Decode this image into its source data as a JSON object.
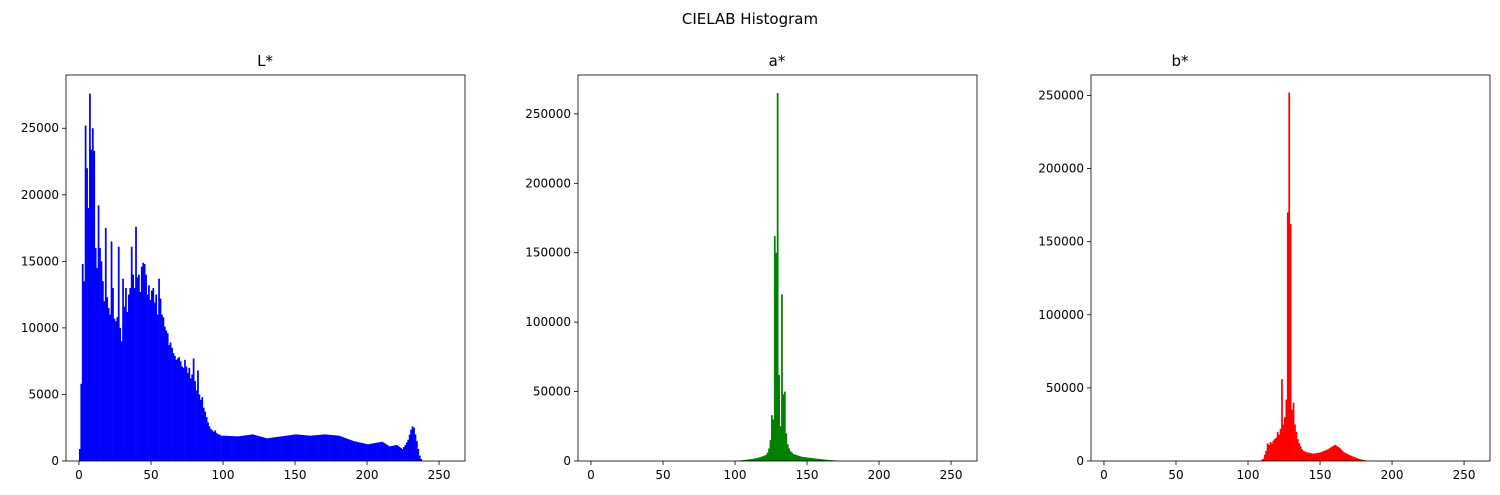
{
  "figure": {
    "suptitle": "CIELAB Histogram"
  },
  "chart_data": [
    {
      "type": "histogram",
      "title": "L*",
      "color": "#0000ff",
      "xlim": [
        -9,
        268
      ],
      "ylim": [
        0,
        29000
      ],
      "xticks": [
        0,
        50,
        100,
        150,
        200,
        250
      ],
      "yticks": [
        0,
        5000,
        10000,
        15000,
        20000,
        25000
      ],
      "ytick_labels": [
        "0",
        "5000",
        "10000",
        "15000",
        "20000",
        "25000"
      ],
      "profile": [
        [
          0,
          900
        ],
        [
          1,
          5800
        ],
        [
          2,
          14800
        ],
        [
          3,
          13500
        ],
        [
          4,
          25200
        ],
        [
          5,
          22000
        ],
        [
          6,
          19000
        ],
        [
          7,
          27600
        ],
        [
          8,
          23400
        ],
        [
          9,
          25000
        ],
        [
          10,
          23300
        ],
        [
          11,
          16000
        ],
        [
          12,
          14500
        ],
        [
          13,
          19200
        ],
        [
          14,
          16000
        ],
        [
          15,
          15000
        ],
        [
          16,
          13500
        ],
        [
          17,
          12000
        ],
        [
          18,
          17500
        ],
        [
          19,
          12300
        ],
        [
          20,
          11500
        ],
        [
          21,
          11000
        ],
        [
          22,
          16500
        ],
        [
          23,
          13000
        ],
        [
          24,
          10700
        ],
        [
          25,
          10500
        ],
        [
          26,
          10800
        ],
        [
          27,
          16100
        ],
        [
          28,
          10000
        ],
        [
          29,
          9000
        ],
        [
          30,
          13700
        ],
        [
          31,
          11600
        ],
        [
          32,
          13000
        ],
        [
          33,
          11200
        ],
        [
          34,
          12500
        ],
        [
          35,
          13000
        ],
        [
          36,
          16100
        ],
        [
          37,
          14000
        ],
        [
          38,
          13000
        ],
        [
          39,
          17600
        ],
        [
          40,
          13800
        ],
        [
          41,
          14000
        ],
        [
          42,
          12700
        ],
        [
          43,
          14600
        ],
        [
          44,
          14900
        ],
        [
          45,
          14800
        ],
        [
          46,
          14000
        ],
        [
          47,
          12500
        ],
        [
          48,
          13200
        ],
        [
          49,
          12100
        ],
        [
          50,
          12800
        ],
        [
          51,
          13000
        ],
        [
          52,
          11900
        ],
        [
          53,
          12500
        ],
        [
          54,
          11000
        ],
        [
          55,
          13700
        ],
        [
          56,
          12200
        ],
        [
          57,
          11000
        ],
        [
          58,
          10800
        ],
        [
          59,
          10100
        ],
        [
          60,
          9800
        ],
        [
          61,
          9600
        ],
        [
          62,
          8700
        ],
        [
          63,
          8900
        ],
        [
          64,
          8500
        ],
        [
          65,
          8100
        ],
        [
          66,
          7900
        ],
        [
          67,
          7600
        ],
        [
          68,
          7700
        ],
        [
          69,
          7800
        ],
        [
          70,
          7500
        ],
        [
          71,
          7100
        ],
        [
          72,
          7000
        ],
        [
          73,
          7600
        ],
        [
          74,
          7100
        ],
        [
          75,
          6600
        ],
        [
          76,
          7000
        ],
        [
          77,
          6200
        ],
        [
          78,
          6500
        ],
        [
          79,
          7700
        ],
        [
          80,
          6000
        ],
        [
          81,
          5300
        ],
        [
          82,
          6800
        ],
        [
          83,
          5000
        ],
        [
          84,
          4600
        ],
        [
          85,
          4800
        ],
        [
          86,
          4000
        ],
        [
          87,
          3700
        ],
        [
          88,
          3300
        ],
        [
          89,
          2900
        ],
        [
          90,
          2600
        ],
        [
          91,
          2400
        ],
        [
          92,
          2300
        ],
        [
          93,
          2200
        ],
        [
          94,
          2300
        ],
        [
          95,
          2100
        ],
        [
          96,
          2000
        ],
        [
          97,
          2000
        ],
        [
          98,
          1900
        ],
        [
          100,
          1900
        ],
        [
          110,
          1850
        ],
        [
          120,
          2000
        ],
        [
          130,
          1700
        ],
        [
          140,
          1850
        ],
        [
          150,
          2000
        ],
        [
          160,
          1900
        ],
        [
          170,
          2000
        ],
        [
          180,
          1900
        ],
        [
          190,
          1500
        ],
        [
          200,
          1250
        ],
        [
          210,
          1450
        ],
        [
          215,
          1100
        ],
        [
          220,
          1200
        ],
        [
          224,
          900
        ],
        [
          226,
          1200
        ],
        [
          228,
          1600
        ],
        [
          230,
          2350
        ],
        [
          231,
          2600
        ],
        [
          232,
          2500
        ],
        [
          233,
          2000
        ],
        [
          234,
          1500
        ],
        [
          235,
          900
        ],
        [
          236,
          400
        ],
        [
          237,
          150
        ],
        [
          238,
          0
        ],
        [
          255,
          0
        ]
      ]
    },
    {
      "type": "histogram",
      "title": "a*",
      "color": "#008000",
      "xlim": [
        -9,
        268
      ],
      "ylim": [
        0,
        278000
      ],
      "xticks": [
        0,
        50,
        100,
        150,
        200,
        250
      ],
      "yticks": [
        0,
        50000,
        100000,
        150000,
        200000,
        250000
      ],
      "ytick_labels": [
        "0",
        "50000",
        "100000",
        "150000",
        "200000",
        "250000"
      ],
      "profile": [
        [
          0,
          0
        ],
        [
          100,
          0
        ],
        [
          104,
          500
        ],
        [
          108,
          1000
        ],
        [
          112,
          1500
        ],
        [
          116,
          2500
        ],
        [
          119,
          3500
        ],
        [
          121,
          4500
        ],
        [
          122,
          6000
        ],
        [
          123,
          9000
        ],
        [
          124,
          15000
        ],
        [
          125,
          33000
        ],
        [
          126,
          30000
        ],
        [
          127,
          162000
        ],
        [
          128,
          150000
        ],
        [
          129,
          265000
        ],
        [
          130,
          62000
        ],
        [
          131,
          25000
        ],
        [
          132,
          120000
        ],
        [
          133,
          48000
        ],
        [
          134,
          50000
        ],
        [
          135,
          20000
        ],
        [
          136,
          12000
        ],
        [
          137,
          9000
        ],
        [
          138,
          7000
        ],
        [
          140,
          5000
        ],
        [
          143,
          4000
        ],
        [
          146,
          3000
        ],
        [
          150,
          2500
        ],
        [
          155,
          1800
        ],
        [
          160,
          1200
        ],
        [
          165,
          700
        ],
        [
          170,
          300
        ],
        [
          175,
          0
        ],
        [
          255,
          0
        ]
      ]
    },
    {
      "type": "histogram",
      "title": "b*",
      "color": "#ff0000",
      "xlim": [
        -9,
        268
      ],
      "ylim": [
        0,
        264000
      ],
      "xticks": [
        0,
        50,
        100,
        150,
        200,
        250
      ],
      "yticks": [
        0,
        50000,
        100000,
        150000,
        200000,
        250000
      ],
      "ytick_labels": [
        "0",
        "50000",
        "100000",
        "150000",
        "200000",
        "250000"
      ],
      "profile": [
        [
          0,
          0
        ],
        [
          108,
          0
        ],
        [
          110,
          1500
        ],
        [
          112,
          7000
        ],
        [
          113,
          12000
        ],
        [
          114,
          11000
        ],
        [
          115,
          13000
        ],
        [
          116,
          12000
        ],
        [
          117,
          14000
        ],
        [
          118,
          15000
        ],
        [
          119,
          16000
        ],
        [
          120,
          20000
        ],
        [
          121,
          18000
        ],
        [
          122,
          22000
        ],
        [
          123,
          56000
        ],
        [
          124,
          25000
        ],
        [
          125,
          30000
        ],
        [
          126,
          42000
        ],
        [
          127,
          170000
        ],
        [
          128,
          252000
        ],
        [
          129,
          162000
        ],
        [
          130,
          35000
        ],
        [
          131,
          40000
        ],
        [
          132,
          25000
        ],
        [
          133,
          20000
        ],
        [
          134,
          15000
        ],
        [
          135,
          12000
        ],
        [
          136,
          10000
        ],
        [
          137,
          8000
        ],
        [
          138,
          7000
        ],
        [
          140,
          6000
        ],
        [
          145,
          5000
        ],
        [
          150,
          6000
        ],
        [
          155,
          8000
        ],
        [
          158,
          10000
        ],
        [
          160,
          11000
        ],
        [
          163,
          9000
        ],
        [
          166,
          6000
        ],
        [
          170,
          4000
        ],
        [
          175,
          2000
        ],
        [
          178,
          1000
        ],
        [
          182,
          300
        ],
        [
          186,
          0
        ],
        [
          255,
          0
        ]
      ]
    }
  ]
}
